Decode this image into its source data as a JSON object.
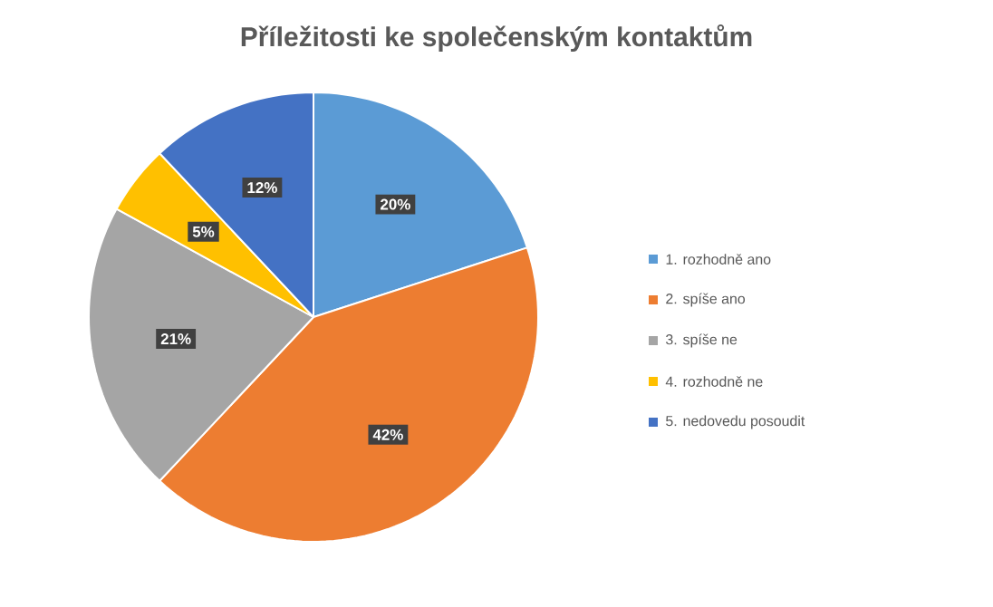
{
  "chart_data": {
    "type": "pie",
    "title": "Příležitosti ke společenským kontaktům",
    "categories": [
      "1. rozhodně ano",
      "2. spíše ano",
      "3. spíše ne",
      "4. rozhodně ne",
      "5. nedovedu posoudit"
    ],
    "values": [
      20,
      42,
      21,
      5,
      12
    ],
    "colors": [
      "#5b9bd5",
      "#ed7d31",
      "#a5a5a5",
      "#ffc000",
      "#4472c4"
    ],
    "value_labels": [
      "20%",
      "42%",
      "21%",
      "5%",
      "12%"
    ],
    "legend": "right"
  }
}
